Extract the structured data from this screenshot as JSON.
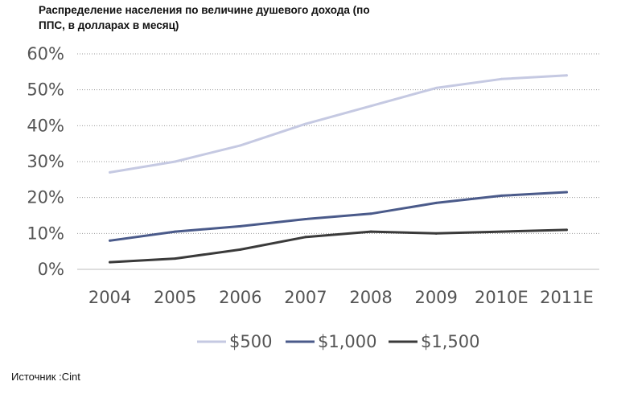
{
  "chart_data": {
    "type": "line",
    "title": "Распределение населения по величине душевого дохода (по ППС, в долларах в месяц)",
    "xlabel": "",
    "ylabel": "",
    "categories": [
      "2004",
      "2005",
      "2006",
      "2007",
      "2008",
      "2009",
      "2010E",
      "2011E"
    ],
    "ylim": [
      0,
      60
    ],
    "yticks": [
      "0%",
      "10%",
      "20%",
      "30%",
      "40%",
      "50%",
      "60%"
    ],
    "grid": "horizontal dotted",
    "legend_position": "bottom",
    "series": [
      {
        "name": "$500",
        "color": "#c5c9e2",
        "values": [
          27,
          30,
          34.5,
          40.5,
          45.5,
          50.5,
          53,
          54
        ]
      },
      {
        "name": "$1,000",
        "color": "#4a5a8a",
        "values": [
          8,
          10.5,
          12,
          14,
          15.5,
          18.5,
          20.5,
          21.5
        ]
      },
      {
        "name": "$1,500",
        "color": "#3a3a3a",
        "values": [
          2,
          3,
          5.5,
          9,
          10.5,
          10,
          10.5,
          11
        ]
      }
    ]
  },
  "source": "Источник :Cint"
}
